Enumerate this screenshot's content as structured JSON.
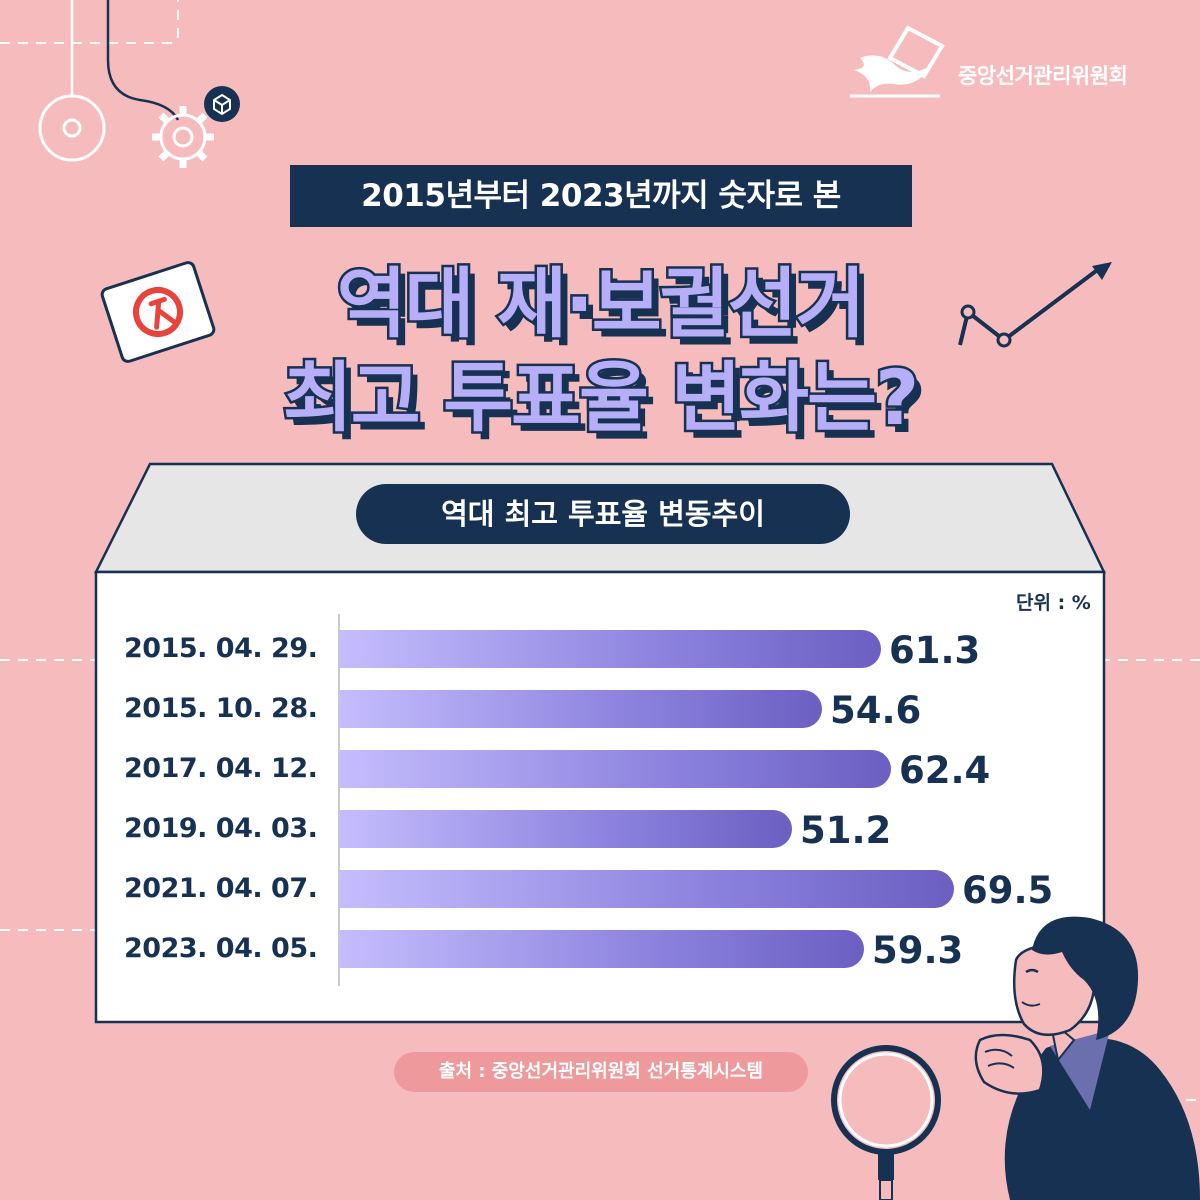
{
  "header": {
    "org_name": "중앙선거관리위원회",
    "subtitle": "2015년부터 2023년까지 숫자로 본",
    "title_line1": "역대 재·보궐선거",
    "title_line2": "최고 투표율 변화는?"
  },
  "chart_title": "역대 최고 투표율 변동추이",
  "unit": "단위 : %",
  "source": "출처 : 중앙선거관리위원회 선거통계시스템",
  "colors": {
    "background": "#f6bcbd",
    "navy": "#173152",
    "bar_start": "#c5bdfd",
    "bar_end": "#6b5fc2",
    "title_fill": "#b6aef7"
  },
  "chart_data": {
    "type": "bar",
    "orientation": "horizontal",
    "title": "역대 최고 투표율 변동추이",
    "unit": "%",
    "categories": [
      "2015. 04. 29.",
      "2015. 10. 28.",
      "2017. 04. 12.",
      "2019. 04. 03.",
      "2021. 04. 07.",
      "2023. 04. 05."
    ],
    "values": [
      61.3,
      54.6,
      62.4,
      51.2,
      69.5,
      59.3
    ],
    "value_labels": [
      "61.3",
      "54.6",
      "62.4",
      "51.2",
      "69.5",
      "59.3"
    ],
    "xlim": [
      0,
      69.5
    ],
    "grid": false,
    "legend": "none"
  }
}
